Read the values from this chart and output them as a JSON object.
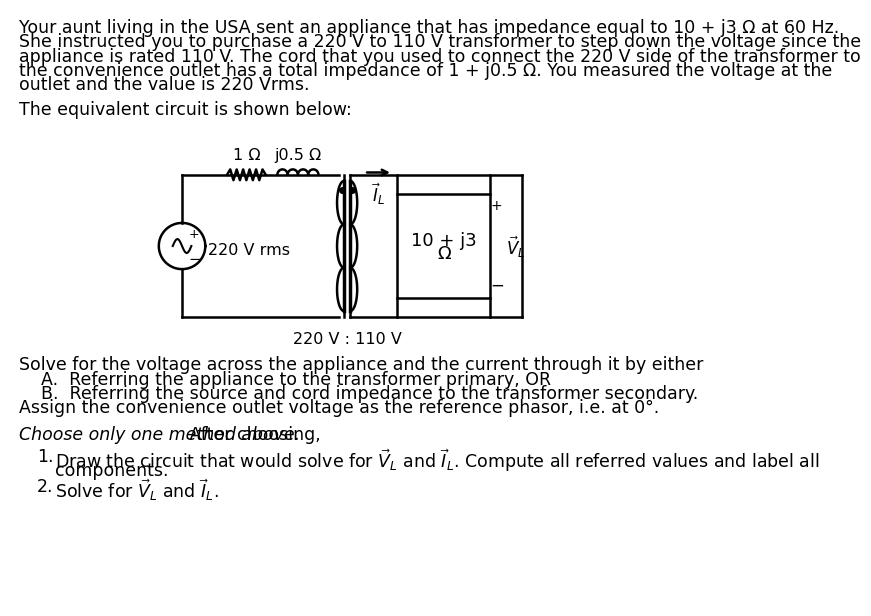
{
  "bg_color": "#ffffff",
  "text_color": "#000000",
  "font_size_body": 12.5,
  "para1_lines": [
    "Your aunt living in the USA sent an appliance that has impedance equal to 10 + j3 Ω at 60 Hz.",
    "She instructed you to purchase a 220 V to 110 V transformer to step down the voltage since the",
    "appliance is rated 110 V. The cord that you used to connect the 220 V side of the transformer to",
    "the convenience outlet has a total impedance of 1 + j0.5 Ω. You measured the voltage at the",
    "outlet and the value is 220 Vrms."
  ],
  "para2": "The equivalent circuit is shown below:",
  "transformer_label": "220 V : 110 V",
  "source_label": "220 V rms",
  "resistor_label": "1 Ω",
  "inductor_label": "j0.5 Ω",
  "load_label1": "10 + j3",
  "load_label2": "Ω",
  "solve_lines": [
    "Solve for the voltage across the appliance and the current through it by either",
    "    A.  Referring the appliance to the transformer primary, OR",
    "    B.  Referring the source and cord impedance to the transformer secondary.",
    "Assign the convenience outlet voltage as the reference phasor, i.e. at 0°."
  ],
  "choose_italic": "Choose only one method above.",
  "choose_rest": " After choosing,",
  "item1a": "Draw the circuit that would solve for $\\vec{V}_L$ and $\\vec{I}_L$. Compute all referred values and label all",
  "item1b": "components.",
  "item2": "Solve for $\\vec{V}_L$ and $\\vec{I}_L$."
}
